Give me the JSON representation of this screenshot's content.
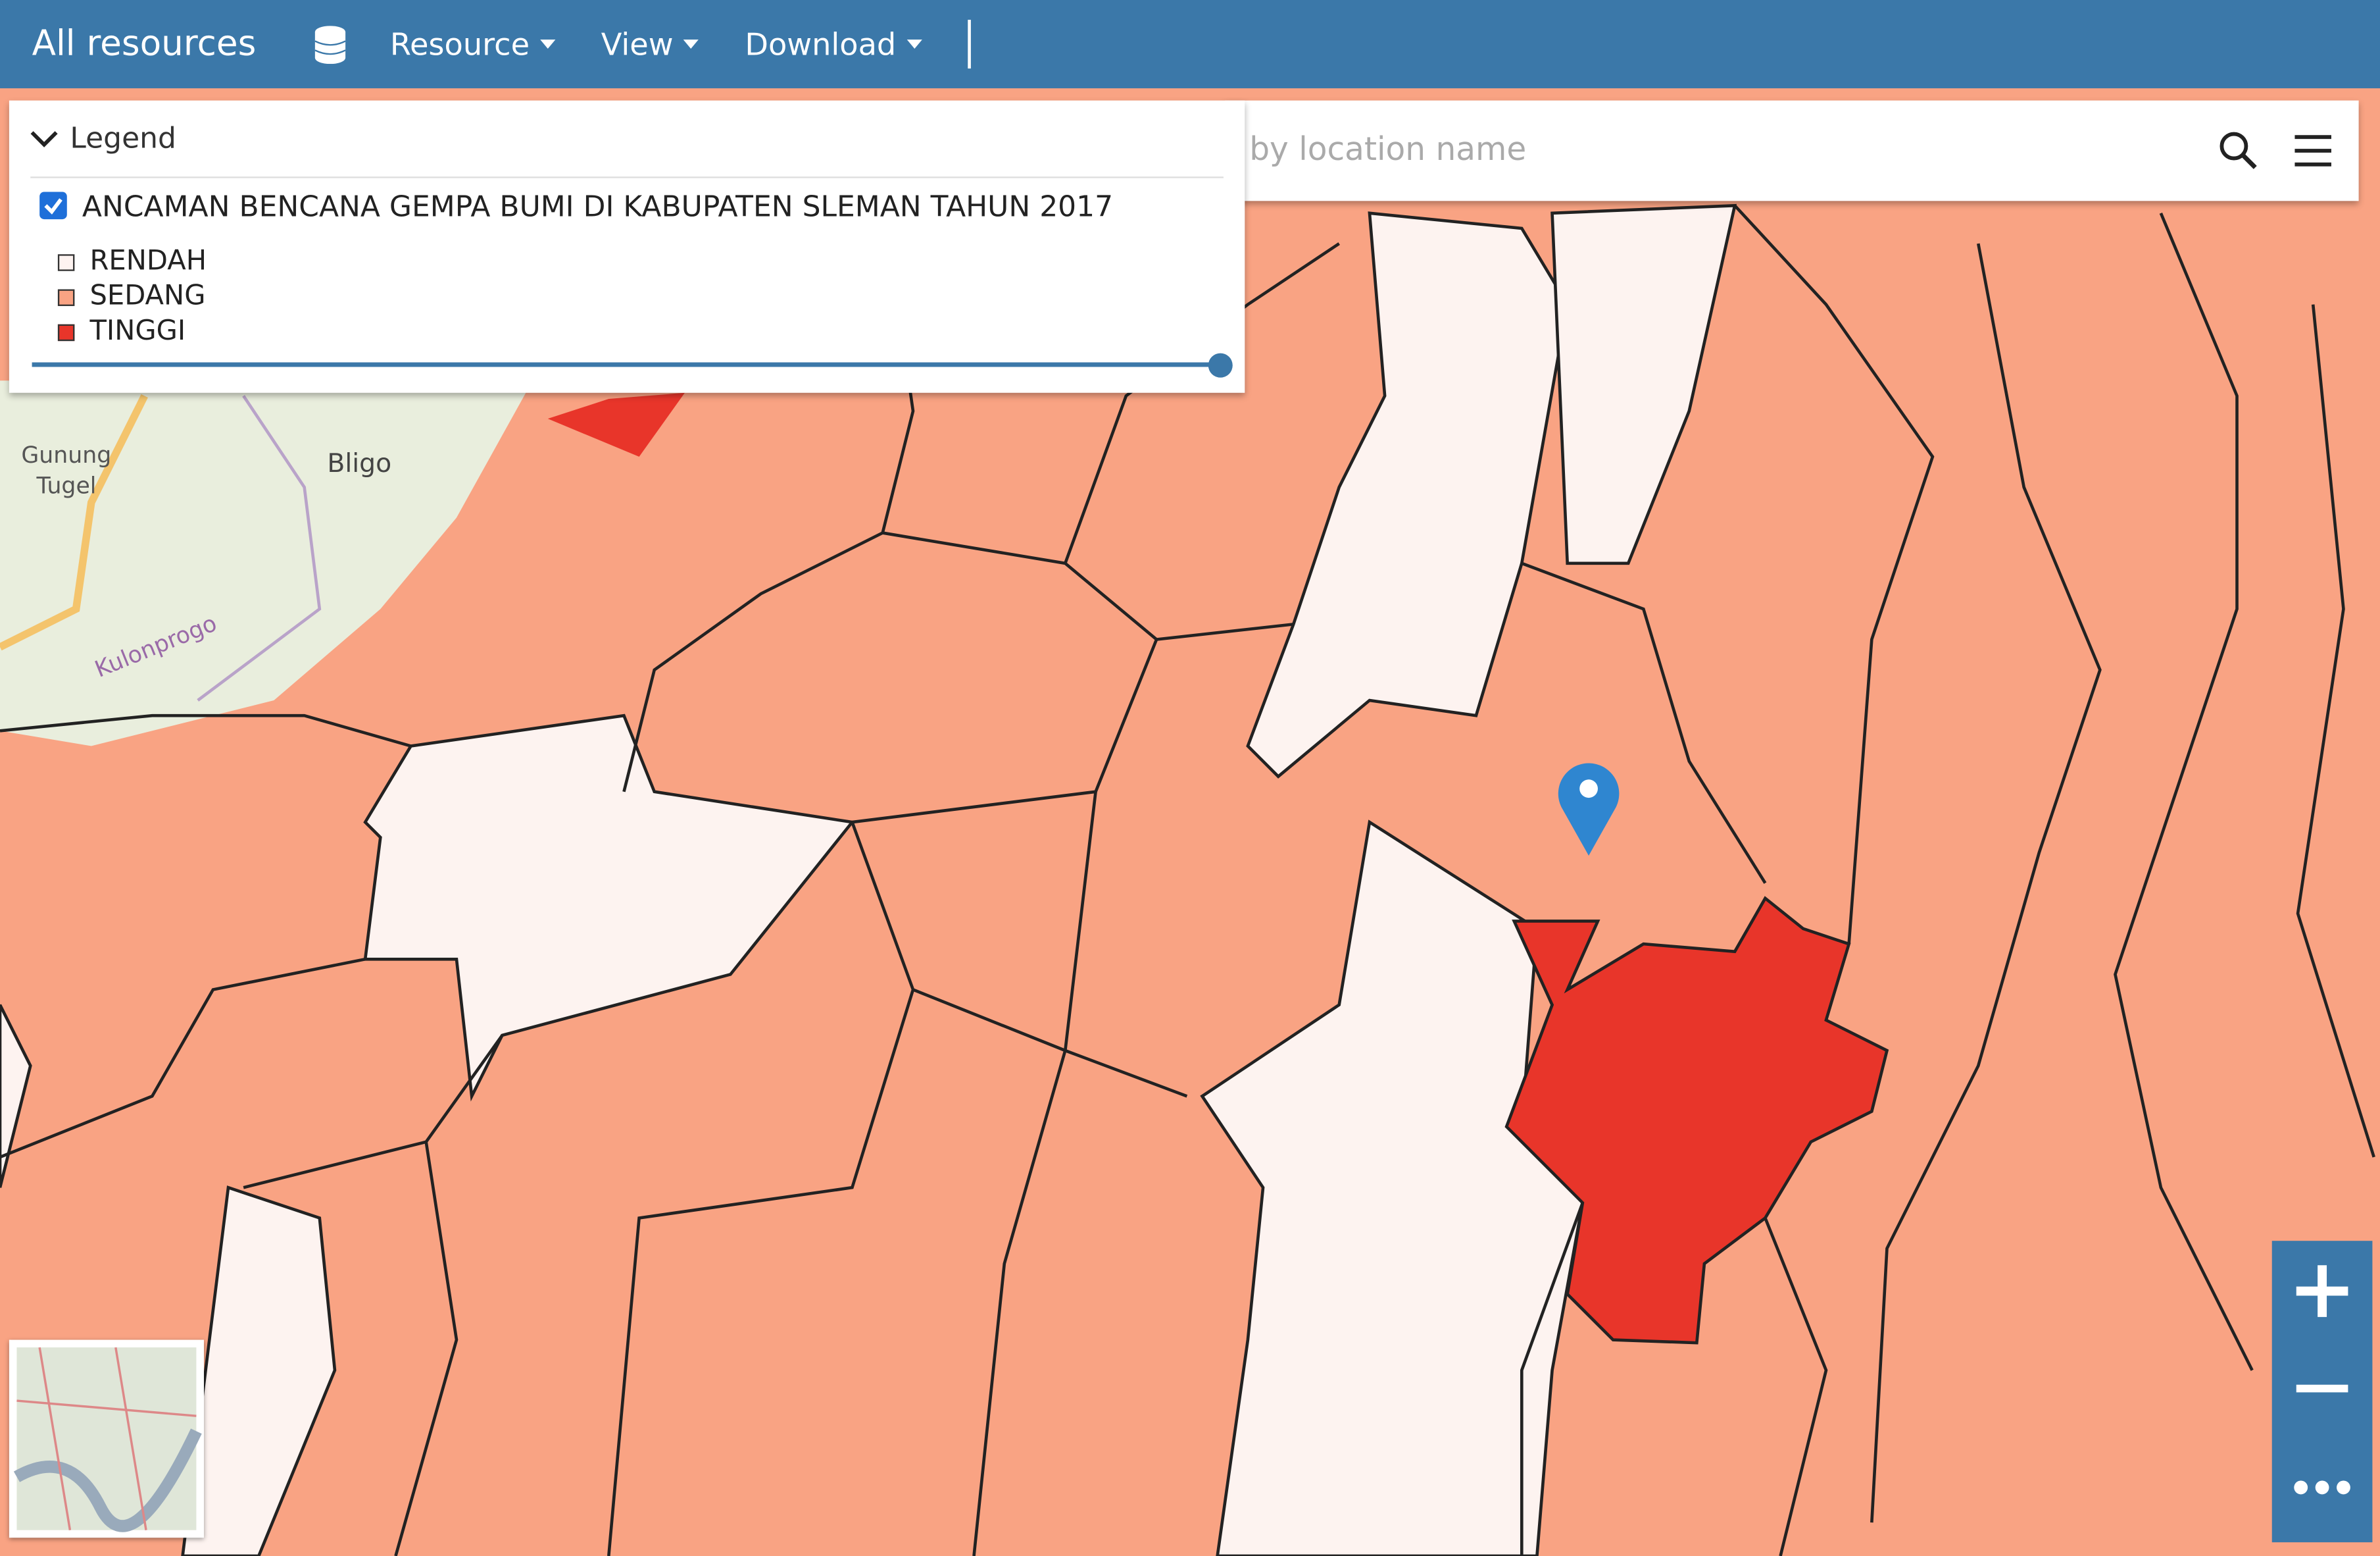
{
  "toolbar": {
    "title": "All resources",
    "menus": [
      "Resource",
      "View",
      "Download"
    ]
  },
  "legend": {
    "title": "Legend",
    "layer": "ANCAMAN BENCANA GEMPA BUMI DI KABUPATEN SLEMAN TAHUN 2017",
    "classes": [
      "RENDAH",
      "SEDANG",
      "TINGGI"
    ]
  },
  "search": {
    "placeholder": "by location name"
  },
  "map_labels": [
    "Gunung",
    "Tugel",
    "Bligo",
    "Kulonprogo"
  ]
}
